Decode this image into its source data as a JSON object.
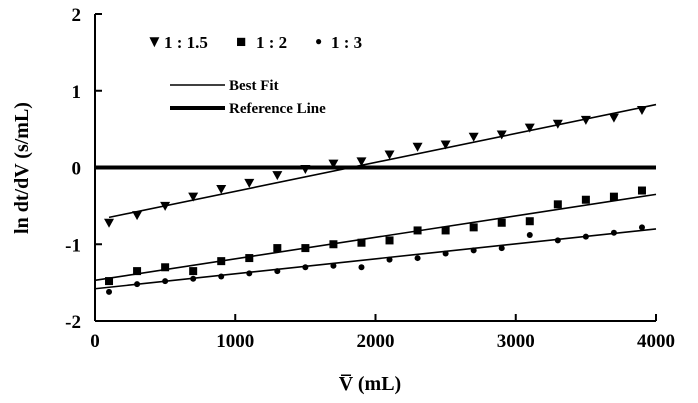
{
  "chart_data": {
    "type": "scatter",
    "title": "",
    "xlabel": "V̅ (mL)",
    "ylabel": "ln dt/dV (s/mL)",
    "xlim": [
      0,
      4000
    ],
    "ylim": [
      -2,
      2
    ],
    "xticks": [
      0,
      1000,
      2000,
      3000,
      4000
    ],
    "xtick_labels": [
      "0",
      "1000",
      "2000",
      "3000",
      "4000"
    ],
    "yticks": [
      -2,
      -1,
      0,
      1,
      2
    ],
    "ytick_labels": [
      "-2",
      "-1",
      "0",
      "1",
      "2"
    ],
    "grid": false,
    "legend_position": "top-left",
    "series": [
      {
        "name": "1:1.5",
        "marker": "triangle-down",
        "x": [
          100,
          300,
          500,
          700,
          900,
          1100,
          1300,
          1500,
          1700,
          1900,
          2100,
          2300,
          2500,
          2700,
          2900,
          3100,
          3300,
          3500,
          3700,
          3900
        ],
        "y": [
          -0.72,
          -0.62,
          -0.5,
          -0.38,
          -0.28,
          -0.2,
          -0.1,
          -0.02,
          0.05,
          0.08,
          0.17,
          0.27,
          0.3,
          0.4,
          0.43,
          0.52,
          0.57,
          0.62,
          0.65,
          0.75
        ],
        "fit": {
          "x": [
            100,
            4000
          ],
          "y": [
            -0.65,
            0.82
          ]
        }
      },
      {
        "name": "1:2",
        "marker": "square",
        "x": [
          100,
          300,
          500,
          700,
          900,
          1100,
          1300,
          1500,
          1700,
          1900,
          2100,
          2300,
          2500,
          2700,
          2900,
          3100,
          3300,
          3500,
          3700,
          3900
        ],
        "y": [
          -1.48,
          -1.35,
          -1.3,
          -1.35,
          -1.22,
          -1.18,
          -1.05,
          -1.05,
          -1.0,
          -0.98,
          -0.95,
          -0.82,
          -0.82,
          -0.78,
          -0.72,
          -0.7,
          -0.48,
          -0.42,
          -0.38,
          -0.3
        ],
        "fit": {
          "x": [
            0,
            4000
          ],
          "y": [
            -1.47,
            -0.35
          ]
        }
      },
      {
        "name": "1:3",
        "marker": "circle",
        "x": [
          100,
          300,
          500,
          700,
          900,
          1100,
          1300,
          1500,
          1700,
          1900,
          2100,
          2300,
          2500,
          2700,
          2900,
          3100,
          3300,
          3500,
          3700,
          3900
        ],
        "y": [
          -1.62,
          -1.52,
          -1.48,
          -1.45,
          -1.42,
          -1.38,
          -1.35,
          -1.3,
          -1.28,
          -1.3,
          -1.2,
          -1.18,
          -1.12,
          -1.08,
          -1.05,
          -0.88,
          -0.95,
          -0.9,
          -0.85,
          -0.78
        ],
        "fit": {
          "x": [
            0,
            4000
          ],
          "y": [
            -1.58,
            -0.8
          ]
        }
      }
    ],
    "reference_line": {
      "y": 0,
      "x": [
        0,
        4000
      ]
    },
    "legend": {
      "markers": [
        {
          "symbol": "▼",
          "label": "1 : 1.5"
        },
        {
          "symbol": "■",
          "label": "1 : 2"
        },
        {
          "symbol": "●",
          "label": "1 : 3"
        }
      ],
      "lines": [
        {
          "label": "Best Fit",
          "style": "thin"
        },
        {
          "label": "Reference Line",
          "style": "thick"
        }
      ]
    }
  }
}
